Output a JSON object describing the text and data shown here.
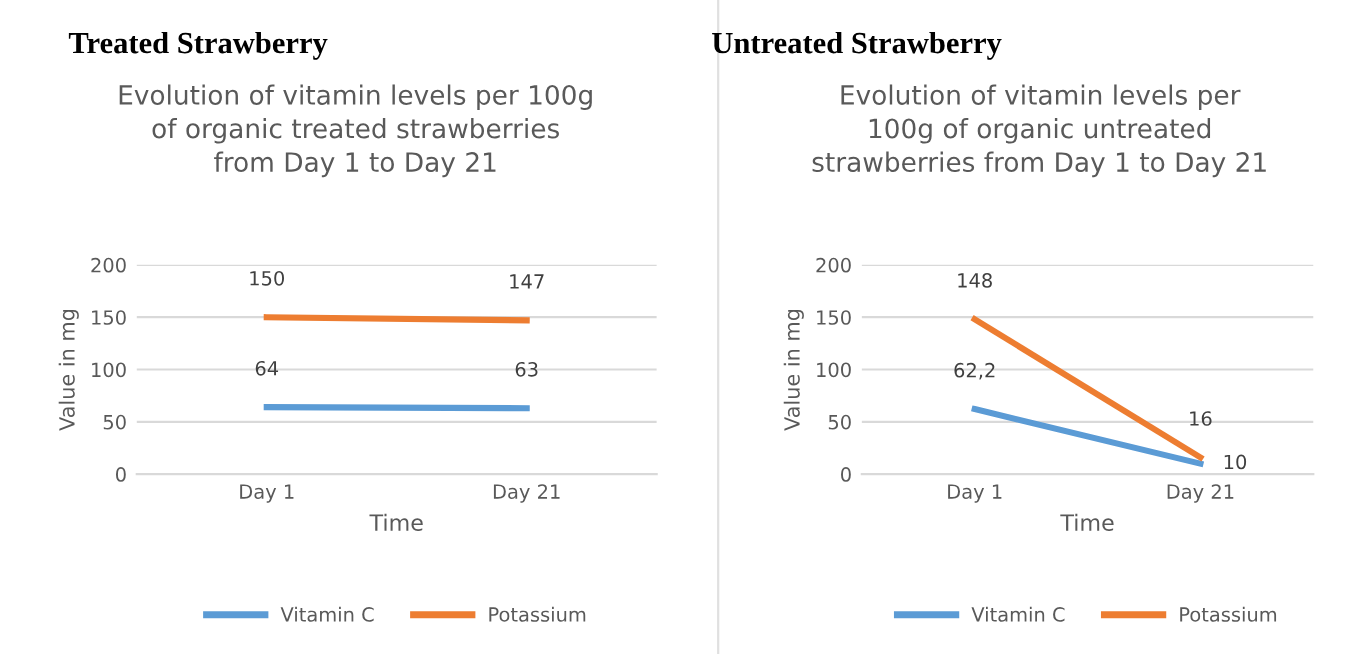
{
  "chart_data": [
    {
      "type": "line",
      "title": "Treated Strawberry",
      "subtitle": "Evolution of vitamin levels per 100g\nof organic treated strawberries\nfrom Day 1 to Day 21",
      "xlabel": "Time",
      "ylabel": "Value in mg",
      "categories": [
        "Day 1",
        "Day 21"
      ],
      "series": [
        {
          "name": "Vitamin C",
          "color": "#5b9bd5",
          "values": [
            64,
            63
          ],
          "value_labels": [
            "64",
            "63"
          ]
        },
        {
          "name": "Potassium",
          "color": "#ed7d31",
          "values": [
            150,
            147
          ],
          "value_labels": [
            "150",
            "147"
          ]
        }
      ],
      "ylim": [
        0,
        200
      ],
      "yticks": [
        0,
        50,
        100,
        150,
        200
      ],
      "grid": "y",
      "legend": "bottom",
      "marker": "none",
      "line_style": "solid"
    },
    {
      "type": "line",
      "title": "Untreated Strawberry",
      "subtitle": "Evolution of vitamin levels per\n100g of organic untreated\nstrawberries from Day 1 to Day 21",
      "xlabel": "Time",
      "ylabel": "Value in mg",
      "categories": [
        "Day 1",
        "Day 21"
      ],
      "series": [
        {
          "name": "Vitamin C",
          "color": "#5b9bd5",
          "values": [
            62.2,
            10
          ],
          "value_labels": [
            "62,2",
            "10"
          ]
        },
        {
          "name": "Potassium",
          "color": "#ed7d31",
          "values": [
            148,
            16
          ],
          "value_labels": [
            "148",
            "16"
          ]
        }
      ],
      "ylim": [
        0,
        200
      ],
      "yticks": [
        0,
        50,
        100,
        150,
        200
      ],
      "grid": "y",
      "legend": "bottom",
      "marker": "none",
      "line_style": "solid"
    }
  ]
}
